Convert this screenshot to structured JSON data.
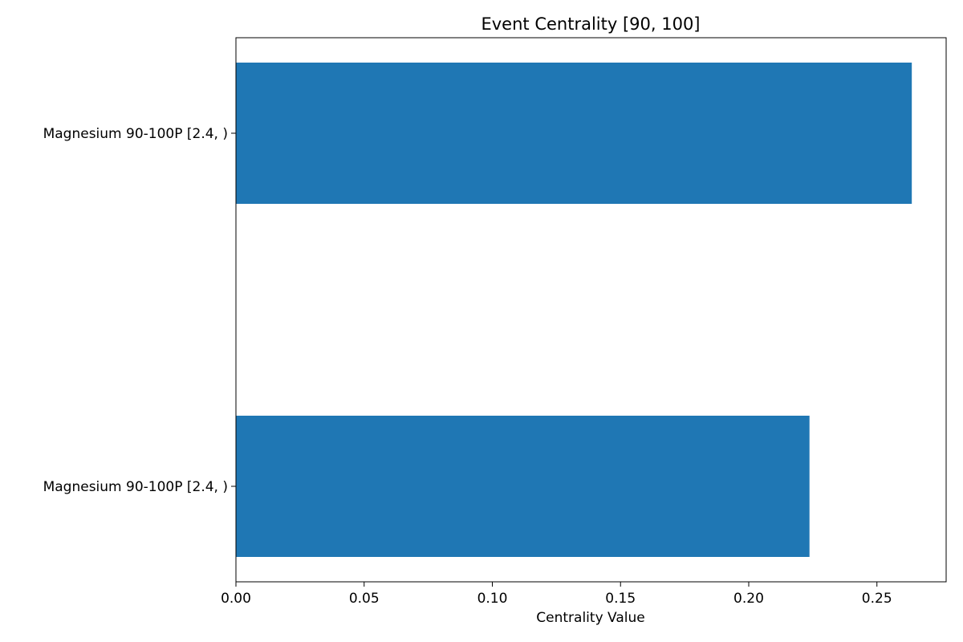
{
  "chart_data": {
    "type": "bar",
    "orientation": "horizontal",
    "title": "Event Centrality [90, 100]",
    "xlabel": "Centrality Value",
    "ylabel": "",
    "categories": [
      "Magnesium 90-100P [2.4, )",
      "Magnesium 90-100P [2.4, )"
    ],
    "values": [
      0.2636,
      0.2237
    ],
    "xlim": [
      0.0,
      0.277
    ],
    "x_ticks": [
      "0.00",
      "0.05",
      "0.10",
      "0.15",
      "0.20",
      "0.25"
    ],
    "x_tick_values": [
      0.0,
      0.05,
      0.1,
      0.15,
      0.2,
      0.25
    ],
    "grid": false,
    "legend": "none",
    "bar_color": "#1f77b4"
  }
}
